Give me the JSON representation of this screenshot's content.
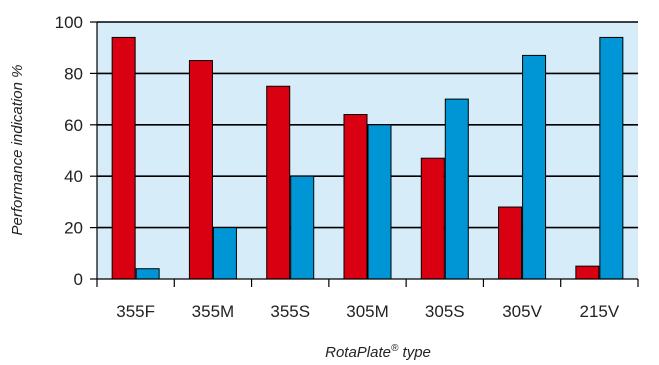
{
  "chart_data": {
    "type": "bar",
    "title": "",
    "xlabel_main": "RotaPlate",
    "xlabel_sup": "®",
    "xlabel_rest": " type",
    "ylabel": "Performance indication %",
    "categories": [
      "355F",
      "355M",
      "355S",
      "305M",
      "305S",
      "305V",
      "215V"
    ],
    "series": [
      {
        "values": [
          94,
          85,
          75,
          64,
          47,
          28,
          5
        ],
        "color": "#d90012"
      },
      {
        "values": [
          4,
          20,
          40,
          60,
          70,
          87,
          94
        ],
        "color": "#0096d6"
      }
    ],
    "ylim": [
      0,
      100
    ],
    "yticks": [
      0,
      20,
      40,
      60,
      80,
      100
    ],
    "grid": true,
    "plot_background": "#d6ecf8"
  }
}
